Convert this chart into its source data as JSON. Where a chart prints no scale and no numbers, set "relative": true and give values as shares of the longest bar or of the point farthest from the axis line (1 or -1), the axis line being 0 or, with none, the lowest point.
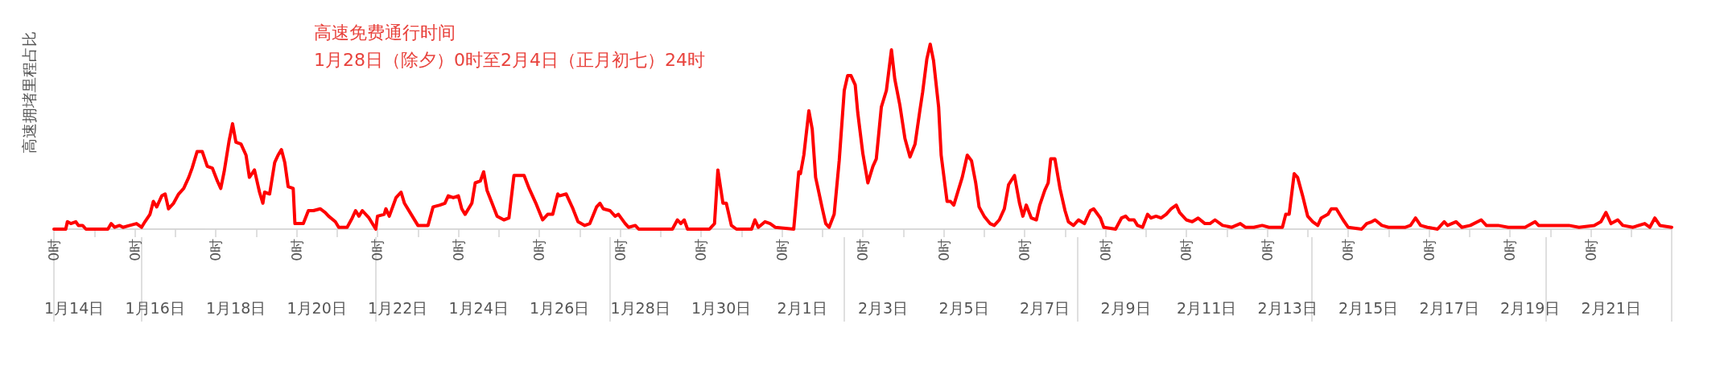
{
  "chart_data": {
    "type": "line",
    "title": "高速免费通行时间\n1月28日（除夕）0时至2月4日（正月初七）24时",
    "ylabel": "高速拥堵里程占比",
    "relative": true,
    "marker": "none",
    "line_style": "solid",
    "xlim": [
      "--01-14",
      "--02-23"
    ],
    "xticks": [
      {
        "value": "--01-14",
        "label": "0时"
      },
      {
        "value": "--01-15",
        "label": null
      },
      {
        "value": "--01-16",
        "label": "0时"
      },
      {
        "value": "--01-17",
        "label": null
      },
      {
        "value": "--01-18",
        "label": "0时"
      },
      {
        "value": "--01-19",
        "label": null
      },
      {
        "value": "--01-20",
        "label": "0时"
      },
      {
        "value": "--01-21",
        "label": null
      },
      {
        "value": "--01-22",
        "label": "0时"
      },
      {
        "value": "--01-23",
        "label": null
      },
      {
        "value": "--01-24",
        "label": "0时"
      },
      {
        "value": "--01-25",
        "label": null
      },
      {
        "value": "--01-26",
        "label": "0时"
      },
      {
        "value": "--01-27",
        "label": null
      },
      {
        "value": "--01-28",
        "label": "0时"
      },
      {
        "value": "--01-29",
        "label": null
      },
      {
        "value": "--01-30",
        "label": "0时"
      },
      {
        "value": "--01-31",
        "label": null
      },
      {
        "value": "--02-01",
        "label": "0时"
      },
      {
        "value": "--02-02",
        "label": null
      },
      {
        "value": "--02-03",
        "label": "0时"
      },
      {
        "value": "--02-04",
        "label": null
      },
      {
        "value": "--02-05",
        "label": "0时"
      },
      {
        "value": "--02-06",
        "label": null
      },
      {
        "value": "--02-07",
        "label": "0时"
      },
      {
        "value": "--02-08",
        "label": null
      },
      {
        "value": "--02-09",
        "label": "0时"
      },
      {
        "value": "--02-10",
        "label": null
      },
      {
        "value": "--02-11",
        "label": "0时"
      },
      {
        "value": "--02-12",
        "label": null
      },
      {
        "value": "--02-13",
        "label": "0时"
      },
      {
        "value": "--02-14",
        "label": null
      },
      {
        "value": "--02-15",
        "label": "0时"
      },
      {
        "value": "--02-16",
        "label": null
      },
      {
        "value": "--02-17",
        "label": "0时"
      },
      {
        "value": "--02-18",
        "label": null
      },
      {
        "value": "--02-19",
        "label": "0时"
      },
      {
        "value": "--02-20",
        "label": null
      },
      {
        "value": "--02-21",
        "label": "0时"
      },
      {
        "value": "--02-22",
        "label": null
      },
      {
        "value": "--02-23",
        "label": null
      }
    ],
    "x2lim": [
      "--01-14",
      "--02-23"
    ],
    "x2ticks": [
      {
        "value": "--01-14T12:00",
        "label": "1月14日"
      },
      {
        "value": "--01-16T12:00",
        "label": "1月16日"
      },
      {
        "value": "--01-18T12:00",
        "label": "1月18日"
      },
      {
        "value": "--01-20T12:00",
        "label": "1月20日"
      },
      {
        "value": "--01-22T12:00",
        "label": "1月22日"
      },
      {
        "value": "--01-24T12:00",
        "label": "1月24日"
      },
      {
        "value": "--01-26T12:00",
        "label": "1月26日"
      },
      {
        "value": "--01-28T12:00",
        "label": "1月28日"
      },
      {
        "value": "--01-30T12:00",
        "label": "1月30日"
      },
      {
        "value": "--02-01T12:00",
        "label": "2月1日"
      },
      {
        "value": "--02-03T12:00",
        "label": "2月3日"
      },
      {
        "value": "--02-05T12:00",
        "label": "2月5日"
      },
      {
        "value": "--02-07T12:00",
        "label": "2月7日"
      },
      {
        "value": "--02-09T12:00",
        "label": "2月9日"
      },
      {
        "value": "--02-11T12:00",
        "label": "2月11日"
      },
      {
        "value": "--02-13T12:00",
        "label": "2月13日"
      },
      {
        "value": "--02-15T12:00",
        "label": "2月15日"
      },
      {
        "value": "--02-17T12:00",
        "label": "2月17日"
      },
      {
        "value": "--02-19T12:00",
        "label": "2月19日"
      },
      {
        "value": "--02-21T12:00",
        "label": "2月21日"
      }
    ],
    "series": [
      {
        "color": "#ff0000",
        "x": [
          "--01-14T00:00",
          "--01-14T07:00",
          "--01-14T08:00",
          "--01-14T10:00",
          "--01-14T13:00",
          "--01-14T14:30",
          "--01-14T17:00",
          "--01-14T19:00",
          "--01-15T08:00",
          "--01-15T10:00",
          "--01-15T12:00",
          "--01-15T15:00",
          "--01-15T17:00",
          "--01-15T21:00",
          "--01-16T01:00",
          "--01-16T04:00",
          "--01-16T06:00",
          "--01-16T09:00",
          "--01-16T11:00",
          "--01-16T13:00",
          "--01-16T16:00",
          "--01-16T18:00",
          "--01-16T20:00",
          "--01-16T23:00",
          "--01-17T02:00",
          "--01-17T05:00",
          "--01-17T08:00",
          "--01-17T10:00",
          "--01-17T13:00",
          "--01-17T16:00",
          "--01-17T19:00",
          "--01-17T22:00",
          "--01-18T01:00",
          "--01-18T03:00",
          "--01-18T05:00",
          "--01-18T08:00",
          "--01-18T10:00",
          "--01-18T12:00",
          "--01-18T15:00",
          "--01-18T18:00",
          "--01-18T20:00",
          "--01-18T23:00",
          "--01-19T02:00",
          "--01-19T04:00",
          "--01-19T05:00",
          "--01-19T08:00",
          "--01-19T11:00",
          "--01-19T13:00",
          "--01-19T15:00",
          "--01-19T17:00",
          "--01-19T19:00",
          "--01-19T22:00",
          "--01-19T23:00",
          "--01-20T04:00",
          "--01-20T07:00",
          "--01-20T10:00",
          "--01-20T14:00",
          "--01-20T17:00",
          "--01-20T19:00",
          "--01-20T23:00",
          "--01-21T01:00",
          "--01-21T06:00",
          "--01-21T09:00",
          "--01-21T11:00",
          "--01-21T13:00",
          "--01-21T15:00",
          "--01-21T19:00",
          "--01-21T23:00",
          "--01-22T00:00",
          "--01-22T04:00",
          "--01-22T05:00",
          "--01-22T07:00",
          "--01-22T11:00",
          "--01-22T14:00",
          "--01-22T16:00",
          "--01-22T20:00",
          "--01-23T00:00",
          "--01-23T06:00",
          "--01-23T09:00",
          "--01-23T13:00",
          "--01-23T16:00",
          "--01-23T18:00",
          "--01-23T21:00",
          "--01-24T00:00",
          "--01-24T02:00",
          "--01-24T04:00",
          "--01-24T08:00",
          "--01-24T10:00",
          "--01-24T13:00",
          "--01-24T15:00",
          "--01-24T17:00",
          "--01-24T20:00",
          "--01-24T23:00",
          "--01-25T03:00",
          "--01-25T06:00",
          "--01-25T09:00",
          "--01-25T12:00",
          "--01-25T15:00",
          "--01-25T18:00",
          "--01-25T22:00",
          "--01-26T02:00",
          "--01-26T05:00",
          "--01-26T08:00",
          "--01-26T11:00",
          "--01-26T12:00",
          "--01-26T16:00",
          "--01-26T20:00",
          "--01-26T23:00",
          "--01-27T03:00",
          "--01-27T06:00",
          "--01-27T10:00",
          "--01-27T12:00",
          "--01-27T14:00",
          "--01-27T18:00",
          "--01-27T21:00",
          "--01-27T23:00",
          "--01-28T03:00",
          "--01-28T05:00",
          "--01-28T09:00",
          "--01-28T11:00",
          "--01-29T07:00",
          "--01-29T10:00",
          "--01-29T12:00",
          "--01-29T14:00",
          "--01-29T16:00",
          "--01-30T05:00",
          "--01-30T08:00",
          "--01-30T10:00",
          "--01-30T13:00",
          "--01-30T15:00",
          "--01-30T18:00",
          "--01-30T21:00",
          "--01-31T06:00",
          "--01-31T08:00",
          "--01-31T10:00",
          "--01-31T14:00",
          "--01-31T17:00",
          "--01-31T20:00",
          "--02-01T07:00",
          "--02-01T10:00",
          "--02-01T11:00",
          "--02-01T13:00",
          "--02-01T16:00",
          "--02-01T18:00",
          "--02-01T20:00",
          "--02-02T00:00",
          "--02-02T02:00",
          "--02-02T04:00",
          "--02-02T07:00",
          "--02-02T10:00",
          "--02-02T13:00",
          "--02-02T15:00",
          "--02-02T17:00",
          "--02-02T19:30",
          "--02-02T21:00",
          "--02-03T00:00",
          "--02-03T03:00",
          "--02-03T06:00",
          "--02-03T08:00",
          "--02-03T11:00",
          "--02-03T14:00",
          "--02-03T17:00",
          "--02-03T19:00",
          "--02-03T22:00",
          "--02-04T01:00",
          "--02-04T04:00",
          "--02-04T07:00",
          "--02-04T10:00",
          "--02-04T11:30",
          "--02-04T14:00",
          "--02-04T16:00",
          "--02-04T18:00",
          "--02-04T21:00",
          "--02-04T22:30",
          "--02-05T02:00",
          "--02-05T04:00",
          "--02-05T06:00",
          "--02-05T09:00",
          "--02-05T11:00",
          "--02-05T14:00",
          "--02-05T16:30",
          "--02-05T19:00",
          "--02-05T21:00",
          "--02-06T00:00",
          "--02-06T03:30",
          "--02-06T06:00",
          "--02-06T09:00",
          "--02-06T12:00",
          "--02-06T14:30",
          "--02-06T18:00",
          "--02-06T21:00",
          "--02-06T23:00",
          "--02-07T01:00",
          "--02-07T04:00",
          "--02-07T07:00",
          "--02-07T09:00",
          "--02-07T12:00",
          "--02-07T14:00",
          "--02-07T15:30",
          "--02-07T18:00",
          "--02-07T21:00",
          "--02-08T00:00",
          "--02-08T02:00",
          "--02-08T05:00",
          "--02-08T08:00",
          "--02-08T11:30",
          "--02-08T15:00",
          "--02-08T17:00",
          "--02-08T21:00",
          "--02-08T23:00",
          "--02-09T06:00",
          "--02-09T09:30",
          "--02-09T12:00",
          "--02-09T14:00",
          "--02-09T17:00",
          "--02-09T19:00",
          "--02-09T22:00",
          "--02-10T01:00",
          "--02-10T03:00",
          "--02-10T06:00",
          "--02-10T09:00",
          "--02-10T12:00",
          "--02-10T15:00",
          "--02-10T18:00",
          "--02-10T20:00",
          "--02-11T00:00",
          "--02-11T03:30",
          "--02-11T07:00",
          "--02-11T11:00",
          "--02-11T14:00",
          "--02-11T17:00",
          "--02-11T21:30",
          "--02-12T03:00",
          "--02-12T08:00",
          "--02-12T11:00",
          "--02-12T16:00",
          "--02-12T21:00",
          "--02-13T01:00",
          "--02-13T09:00",
          "--02-13T11:00",
          "--02-13T13:00",
          "--02-13T16:00",
          "--02-13T18:00",
          "--02-13T21:00",
          "--02-14T00:00",
          "--02-14T03:00",
          "--02-14T06:00",
          "--02-14T08:00",
          "--02-14T12:00",
          "--02-14T14:00",
          "--02-14T17:00",
          "--02-14T21:00",
          "--02-15T00:00",
          "--02-15T08:00",
          "--02-15T11:00",
          "--02-15T14:00",
          "--02-15T16:00",
          "--02-15T20:00",
          "--02-16T00:00",
          "--02-16T10:00",
          "--02-16T13:00",
          "--02-16T16:00",
          "--02-16T19:00",
          "--02-16T23:00",
          "--02-17T05:00",
          "--02-17T09:00",
          "--02-17T11:00",
          "--02-17T16:00",
          "--02-17T19:30",
          "--02-18T00:30",
          "--02-18T07:00",
          "--02-18T10:00",
          "--02-18T17:00",
          "--02-18T23:00",
          "--02-19T09:00",
          "--02-19T15:00",
          "--02-19T17:00",
          "--02-20T04:00",
          "--02-20T11:00",
          "--02-20T17:00",
          "--02-21T02:00",
          "--02-21T06:00",
          "--02-21T09:00",
          "--02-21T12:00",
          "--02-21T16:00",
          "--02-21T19:00",
          "--02-22T01:00",
          "--02-22T08:00",
          "--02-22T11:00",
          "--02-22T14:00",
          "--02-22T17:00",
          "--02-23T00:00"
        ],
        "values": [
          0,
          0,
          0.04,
          0.03,
          0.04,
          0.02,
          0.02,
          0,
          0,
          0.03,
          0.01,
          0.02,
          0.01,
          0.02,
          0.03,
          0.01,
          0.04,
          0.08,
          0.15,
          0.12,
          0.18,
          0.19,
          0.11,
          0.14,
          0.19,
          0.22,
          0.28,
          0.33,
          0.42,
          0.42,
          0.34,
          0.33,
          0.26,
          0.22,
          0.31,
          0.48,
          0.57,
          0.47,
          0.46,
          0.4,
          0.28,
          0.32,
          0.2,
          0.14,
          0.2,
          0.19,
          0.36,
          0.4,
          0.43,
          0.36,
          0.23,
          0.22,
          0.03,
          0.03,
          0.1,
          0.1,
          0.11,
          0.09,
          0.07,
          0.04,
          0.01,
          0.01,
          0.06,
          0.1,
          0.07,
          0.1,
          0.06,
          0,
          0.07,
          0.08,
          0.11,
          0.07,
          0.17,
          0.2,
          0.14,
          0.08,
          0.02,
          0.02,
          0.12,
          0.13,
          0.14,
          0.18,
          0.17,
          0.18,
          0.11,
          0.08,
          0.14,
          0.25,
          0.26,
          0.31,
          0.21,
          0.14,
          0.07,
          0.05,
          0.06,
          0.29,
          0.29,
          0.29,
          0.22,
          0.14,
          0.05,
          0.08,
          0.08,
          0.19,
          0.18,
          0.19,
          0.11,
          0.04,
          0.02,
          0.03,
          0.12,
          0.14,
          0.11,
          0.1,
          0.07,
          0.08,
          0.03,
          0.01,
          0.02,
          0,
          0,
          0.05,
          0.03,
          0.05,
          0,
          0,
          0.03,
          0.32,
          0.14,
          0.14,
          0.02,
          0,
          0,
          0.05,
          0.01,
          0.04,
          0.03,
          0.01,
          0,
          0.31,
          0.3,
          0.4,
          0.64,
          0.54,
          0.28,
          0.11,
          0.03,
          0.01,
          0.08,
          0.37,
          0.75,
          0.83,
          0.83,
          0.78,
          0.63,
          0.41,
          0.25,
          0.34,
          0.38,
          0.66,
          0.75,
          0.97,
          0.81,
          0.67,
          0.49,
          0.39,
          0.46,
          0.65,
          0.74,
          0.92,
          1,
          0.91,
          0.66,
          0.4,
          0.15,
          0.15,
          0.13,
          0.22,
          0.28,
          0.4,
          0.37,
          0.25,
          0.12,
          0.07,
          0.03,
          0.02,
          0.05,
          0.11,
          0.24,
          0.29,
          0.14,
          0.07,
          0.13,
          0.06,
          0.05,
          0.13,
          0.21,
          0.25,
          0.38,
          0.38,
          0.22,
          0.1,
          0.04,
          0.02,
          0.05,
          0.03,
          0.1,
          0.11,
          0.06,
          0.01,
          0,
          0.06,
          0.07,
          0.05,
          0.05,
          0.02,
          0.01,
          0.08,
          0.06,
          0.07,
          0.06,
          0.08,
          0.11,
          0.13,
          0.09,
          0.05,
          0.04,
          0.06,
          0.03,
          0.03,
          0.05,
          0.02,
          0.01,
          0.03,
          0.01,
          0.01,
          0.02,
          0.01,
          0.01,
          0.08,
          0.08,
          0.3,
          0.28,
          0.18,
          0.07,
          0.04,
          0.02,
          0.06,
          0.08,
          0.11,
          0.11,
          0.05,
          0.01,
          0,
          0.03,
          0.04,
          0.05,
          0.02,
          0.01,
          0.01,
          0.02,
          0.06,
          0.02,
          0.01,
          0,
          0.04,
          0.02,
          0.04,
          0.01,
          0.02,
          0.05,
          0.02,
          0.02,
          0.01,
          0.01,
          0.04,
          0.02,
          0.02,
          0.02,
          0.01,
          0.02,
          0.04,
          0.09,
          0.03,
          0.05,
          0.02,
          0.01,
          0.03,
          0.01,
          0.06,
          0.02,
          0.01
        ]
      }
    ]
  }
}
